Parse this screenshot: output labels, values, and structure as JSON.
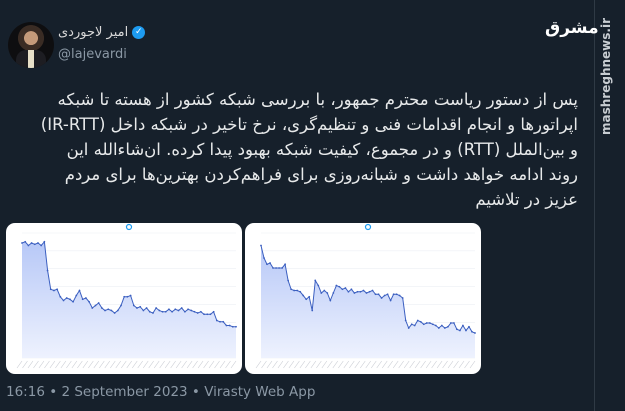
{
  "author": {
    "name": "امیر لاجوردی",
    "handle": "@lajevardi",
    "verified": true,
    "verified_icon": "verified-badge-icon"
  },
  "tweet": {
    "lines": [
      "پس از دستور ریاست محترم جمهور، با بررسی شبکه کشور از هسته تا شبکه",
      "اپراتورها و انجام اقدامات فنی و تنظیم‌گری، نرخ تاخیر در شبکه داخل (IR-RTT)",
      "و بین‌الملل (RTT) و در مجموع، کیفیت شبکه بهبود پیدا کرده. ان‌شاءالله این",
      "روند ادامه خواهد داشت و شبانه‌روزی برای فراهم‌کردن بهترین‌ها برای مردم",
      "عزیز در تلاشیم"
    ]
  },
  "footer": {
    "time": "16:16",
    "date": "2 September 2023",
    "source": "Virasty Web App",
    "separator": "•"
  },
  "watermark": {
    "logo": "مشرق",
    "url": "mashreghnews.ir"
  },
  "colors": {
    "background": "#16202b",
    "accent": "#1d9bf0",
    "chart_line": "#3b5fc0",
    "chart_fill": "#c9d6fb"
  },
  "chart_data": [
    {
      "type": "area",
      "values": [
        92,
        93,
        90,
        92,
        91,
        92,
        90,
        93,
        70,
        55,
        54,
        55,
        49,
        46,
        48,
        47,
        45,
        50,
        54,
        47,
        48,
        45,
        40,
        42,
        44,
        40,
        38,
        39,
        38,
        36,
        38,
        42,
        49,
        49,
        50,
        42,
        40,
        41,
        38,
        40,
        37,
        36,
        40,
        38,
        37,
        37,
        39,
        37,
        39,
        38,
        40,
        37,
        39,
        38,
        37,
        36,
        37,
        35,
        35,
        35,
        37,
        30,
        29,
        29,
        26,
        26,
        25,
        25
      ]
    },
    {
      "type": "area",
      "values": [
        90,
        80,
        75,
        76,
        72,
        72,
        72,
        72,
        75,
        62,
        55,
        54,
        54,
        53,
        50,
        47,
        49,
        38,
        62,
        58,
        52,
        54,
        52,
        46,
        52,
        58,
        57,
        55,
        56,
        53,
        55,
        52,
        53,
        53,
        54,
        52,
        53,
        54,
        51,
        51,
        48,
        50,
        51,
        46,
        51,
        51,
        50,
        48,
        30,
        24,
        27,
        26,
        30,
        29,
        27,
        28,
        28,
        27,
        26,
        24,
        26,
        24,
        25,
        28,
        28,
        23,
        22,
        26,
        22,
        25,
        21,
        20
      ]
    }
  ]
}
